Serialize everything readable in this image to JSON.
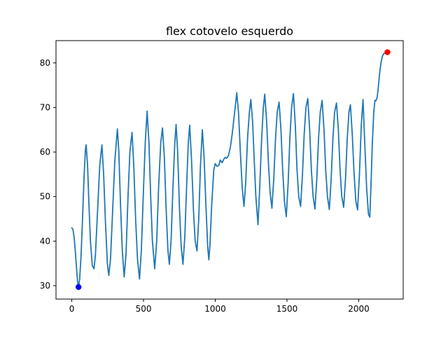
{
  "chart_data": {
    "type": "line",
    "title": "flex cotovelo esquerdo",
    "xlabel": "",
    "ylabel": "",
    "xlim": [
      -110,
      2310
    ],
    "ylim": [
      27,
      85
    ],
    "xticks": [
      0,
      500,
      1000,
      1500,
      2000
    ],
    "yticks": [
      30,
      40,
      50,
      60,
      70,
      80
    ],
    "grid": false,
    "series": [
      {
        "color": "#1f77b4",
        "points": [
          [
            0,
            43.0
          ],
          [
            8,
            42.6
          ],
          [
            16,
            41.0
          ],
          [
            24,
            38.0
          ],
          [
            32,
            34.5
          ],
          [
            40,
            31.0
          ],
          [
            47,
            29.7
          ],
          [
            55,
            31.5
          ],
          [
            65,
            37.0
          ],
          [
            75,
            45.0
          ],
          [
            85,
            54.0
          ],
          [
            95,
            60.5
          ],
          [
            100,
            61.6
          ],
          [
            110,
            57.0
          ],
          [
            120,
            48.0
          ],
          [
            130,
            40.0
          ],
          [
            143,
            34.5
          ],
          [
            155,
            33.8
          ],
          [
            165,
            37.0
          ],
          [
            180,
            47.0
          ],
          [
            195,
            57.0
          ],
          [
            210,
            61.6
          ],
          [
            222,
            55.0
          ],
          [
            235,
            44.0
          ],
          [
            248,
            35.0
          ],
          [
            258,
            32.3
          ],
          [
            270,
            36.0
          ],
          [
            285,
            47.0
          ],
          [
            300,
            58.0
          ],
          [
            318,
            65.2
          ],
          [
            328,
            60.0
          ],
          [
            340,
            48.0
          ],
          [
            352,
            38.0
          ],
          [
            365,
            32.0
          ],
          [
            378,
            37.0
          ],
          [
            392,
            50.0
          ],
          [
            405,
            60.0
          ],
          [
            420,
            64.4
          ],
          [
            432,
            57.0
          ],
          [
            445,
            45.0
          ],
          [
            458,
            36.0
          ],
          [
            472,
            31.5
          ],
          [
            485,
            38.0
          ],
          [
            498,
            50.0
          ],
          [
            512,
            62.0
          ],
          [
            525,
            69.2
          ],
          [
            538,
            62.0
          ],
          [
            550,
            50.0
          ],
          [
            562,
            40.0
          ],
          [
            578,
            33.8
          ],
          [
            592,
            40.0
          ],
          [
            605,
            52.0
          ],
          [
            620,
            62.0
          ],
          [
            632,
            65.4
          ],
          [
            645,
            59.0
          ],
          [
            658,
            47.0
          ],
          [
            670,
            38.0
          ],
          [
            680,
            34.8
          ],
          [
            692,
            40.0
          ],
          [
            705,
            52.0
          ],
          [
            718,
            62.0
          ],
          [
            727,
            66.2
          ],
          [
            738,
            60.0
          ],
          [
            750,
            48.0
          ],
          [
            762,
            39.0
          ],
          [
            775,
            34.8
          ],
          [
            788,
            41.0
          ],
          [
            800,
            52.0
          ],
          [
            812,
            62.0
          ],
          [
            822,
            66.0
          ],
          [
            835,
            58.0
          ],
          [
            848,
            47.0
          ],
          [
            860,
            40.0
          ],
          [
            873,
            37.8
          ],
          [
            885,
            45.0
          ],
          [
            897,
            57.0
          ],
          [
            910,
            65.0
          ],
          [
            922,
            59.0
          ],
          [
            935,
            48.0
          ],
          [
            947,
            39.0
          ],
          [
            955,
            35.8
          ],
          [
            963,
            39.0
          ],
          [
            975,
            48.0
          ],
          [
            990,
            56.0
          ],
          [
            1000,
            57.4
          ],
          [
            1012,
            56.8
          ],
          [
            1025,
            57.0
          ],
          [
            1035,
            58.2
          ],
          [
            1048,
            57.6
          ],
          [
            1060,
            58.4
          ],
          [
            1070,
            58.8
          ],
          [
            1080,
            58.6
          ],
          [
            1092,
            59.2
          ],
          [
            1105,
            61.0
          ],
          [
            1118,
            64.0
          ],
          [
            1132,
            68.0
          ],
          [
            1150,
            73.3
          ],
          [
            1162,
            69.0
          ],
          [
            1175,
            60.0
          ],
          [
            1188,
            52.0
          ],
          [
            1200,
            47.8
          ],
          [
            1212,
            53.0
          ],
          [
            1225,
            63.0
          ],
          [
            1238,
            69.0
          ],
          [
            1248,
            71.8
          ],
          [
            1260,
            67.0
          ],
          [
            1272,
            58.0
          ],
          [
            1283,
            50.0
          ],
          [
            1298,
            43.7
          ],
          [
            1310,
            52.0
          ],
          [
            1322,
            62.0
          ],
          [
            1335,
            70.0
          ],
          [
            1345,
            73.0
          ],
          [
            1358,
            67.0
          ],
          [
            1370,
            58.0
          ],
          [
            1382,
            51.0
          ],
          [
            1395,
            47.4
          ],
          [
            1408,
            54.0
          ],
          [
            1420,
            63.0
          ],
          [
            1432,
            69.0
          ],
          [
            1445,
            71.2
          ],
          [
            1458,
            65.0
          ],
          [
            1470,
            56.0
          ],
          [
            1482,
            49.0
          ],
          [
            1495,
            45.5
          ],
          [
            1508,
            53.0
          ],
          [
            1520,
            63.0
          ],
          [
            1532,
            70.0
          ],
          [
            1545,
            73.1
          ],
          [
            1558,
            66.0
          ],
          [
            1570,
            56.0
          ],
          [
            1582,
            50.0
          ],
          [
            1595,
            47.8
          ],
          [
            1608,
            55.0
          ],
          [
            1620,
            64.0
          ],
          [
            1632,
            70.0
          ],
          [
            1645,
            72.0
          ],
          [
            1658,
            65.0
          ],
          [
            1670,
            56.0
          ],
          [
            1682,
            50.0
          ],
          [
            1695,
            47.2
          ],
          [
            1708,
            54.0
          ],
          [
            1720,
            63.0
          ],
          [
            1732,
            69.0
          ],
          [
            1745,
            71.6
          ],
          [
            1758,
            65.0
          ],
          [
            1770,
            56.0
          ],
          [
            1782,
            50.0
          ],
          [
            1795,
            47.1
          ],
          [
            1808,
            54.0
          ],
          [
            1820,
            63.0
          ],
          [
            1832,
            69.0
          ],
          [
            1845,
            71.0
          ],
          [
            1858,
            65.0
          ],
          [
            1870,
            56.0
          ],
          [
            1882,
            50.0
          ],
          [
            1895,
            47.6
          ],
          [
            1908,
            54.0
          ],
          [
            1920,
            63.0
          ],
          [
            1932,
            69.0
          ],
          [
            1942,
            70.6
          ],
          [
            1955,
            64.0
          ],
          [
            1968,
            55.0
          ],
          [
            1980,
            49.0
          ],
          [
            1992,
            47.0
          ],
          [
            2005,
            55.0
          ],
          [
            2018,
            66.0
          ],
          [
            2030,
            71.8
          ],
          [
            2042,
            62.0
          ],
          [
            2055,
            52.0
          ],
          [
            2068,
            46.0
          ],
          [
            2077,
            45.4
          ],
          [
            2085,
            52.0
          ],
          [
            2095,
            62.0
          ],
          [
            2105,
            69.0
          ],
          [
            2113,
            71.6
          ],
          [
            2120,
            71.5
          ],
          [
            2128,
            72.2
          ],
          [
            2135,
            74.0
          ],
          [
            2145,
            77.5
          ],
          [
            2155,
            80.0
          ],
          [
            2165,
            81.5
          ],
          [
            2175,
            82.1
          ],
          [
            2190,
            82.3
          ],
          [
            2200,
            82.4
          ]
        ]
      }
    ],
    "markers": [
      {
        "x": 47,
        "y": 29.7,
        "color": "#0000ff"
      },
      {
        "x": 2200,
        "y": 82.4,
        "color": "#ff0000"
      }
    ]
  }
}
